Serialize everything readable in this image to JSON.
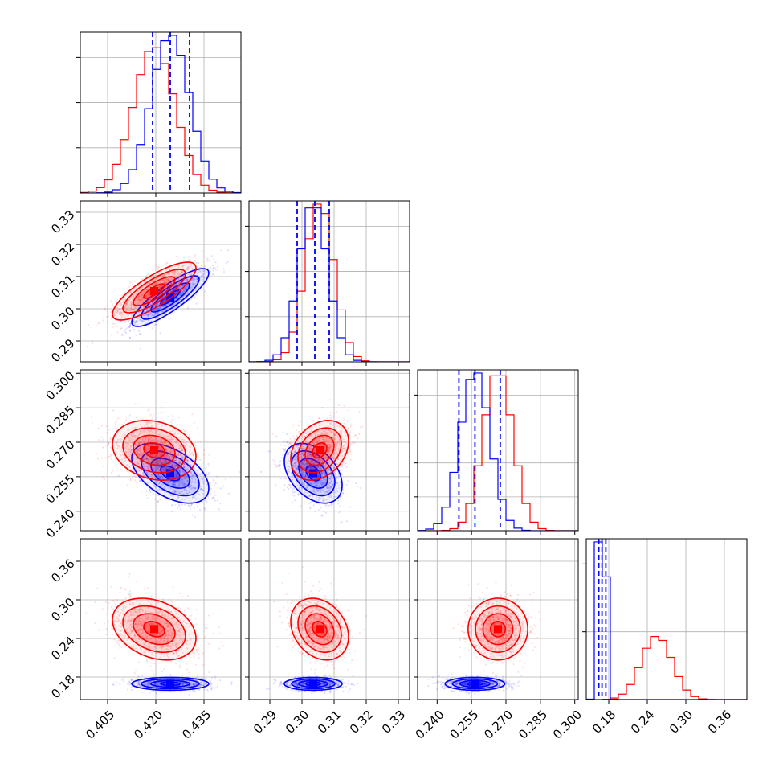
{
  "chart_data": {
    "type": "corner",
    "title": "",
    "parameters": [
      "",
      "",
      "",
      ""
    ],
    "colors": {
      "red": "#ff0000",
      "blue": "#0000ff",
      "grid": "#b0b0b0",
      "frame": "#000000"
    },
    "grid": true,
    "legend": "none",
    "series": [
      {
        "color": "red",
        "mean": [
          0.4195,
          0.3055,
          0.2665,
          0.2545
        ],
        "std": [
          0.0065,
          0.0045,
          0.0065,
          0.024
        ],
        "corr": [
          [
            1.0,
            0.8,
            -0.2,
            -0.3
          ],
          [
            0.8,
            1.0,
            0.3,
            -0.25
          ],
          [
            -0.2,
            0.3,
            1.0,
            0.0
          ],
          [
            -0.3,
            -0.25,
            0.0,
            1.0
          ]
        ]
      },
      {
        "color": "blue",
        "mean": [
          0.4245,
          0.3035,
          0.2565,
          0.1695
        ],
        "std": [
          0.006,
          0.0045,
          0.0065,
          0.005
        ],
        "corr": [
          [
            1.0,
            0.85,
            -0.5,
            0.0
          ],
          [
            0.85,
            1.0,
            -0.4,
            0.0
          ],
          [
            -0.5,
            -0.4,
            1.0,
            0.0
          ],
          [
            0.0,
            0.0,
            0.0,
            1.0
          ]
        ],
        "quantiles_marked": [
          [
            0.419,
            0.4245,
            0.4305
          ],
          [
            0.2985,
            0.304,
            0.3085
          ],
          [
            0.2495,
            0.2565,
            0.2675
          ],
          [
            0.1645,
            0.1695,
            0.1755
          ]
        ]
      }
    ],
    "axes": [
      {
        "lim": [
          0.3965,
          0.4465
        ],
        "ticks": [
          0.405,
          0.42,
          0.435
        ],
        "ticklabels": [
          "0.405",
          "0.420",
          "0.435"
        ]
      },
      {
        "lim": [
          0.2835,
          0.3335
        ],
        "ticks": [
          0.29,
          0.3,
          0.31,
          0.32,
          0.33
        ],
        "ticklabels": [
          "0.29",
          "0.30",
          "0.31",
          "0.32",
          "0.33"
        ]
      },
      {
        "lim": [
          0.2315,
          0.3015
        ],
        "ticks": [
          0.24,
          0.255,
          0.27,
          0.285,
          0.3
        ],
        "ticklabels": [
          "0.240",
          "0.255",
          "0.270",
          "0.285",
          "0.300"
        ]
      },
      {
        "lim": [
          0.145,
          0.395
        ],
        "ticks": [
          0.18,
          0.24,
          0.3,
          0.36
        ],
        "ticklabels": [
          "0.18",
          "0.24",
          "0.30",
          "0.36"
        ]
      }
    ],
    "hist_ticks": [
      [
        40,
        80,
        120
      ],
      [
        40,
        80,
        120
      ],
      [
        40,
        80,
        120,
        160
      ],
      [
        200,
        400
      ]
    ]
  }
}
